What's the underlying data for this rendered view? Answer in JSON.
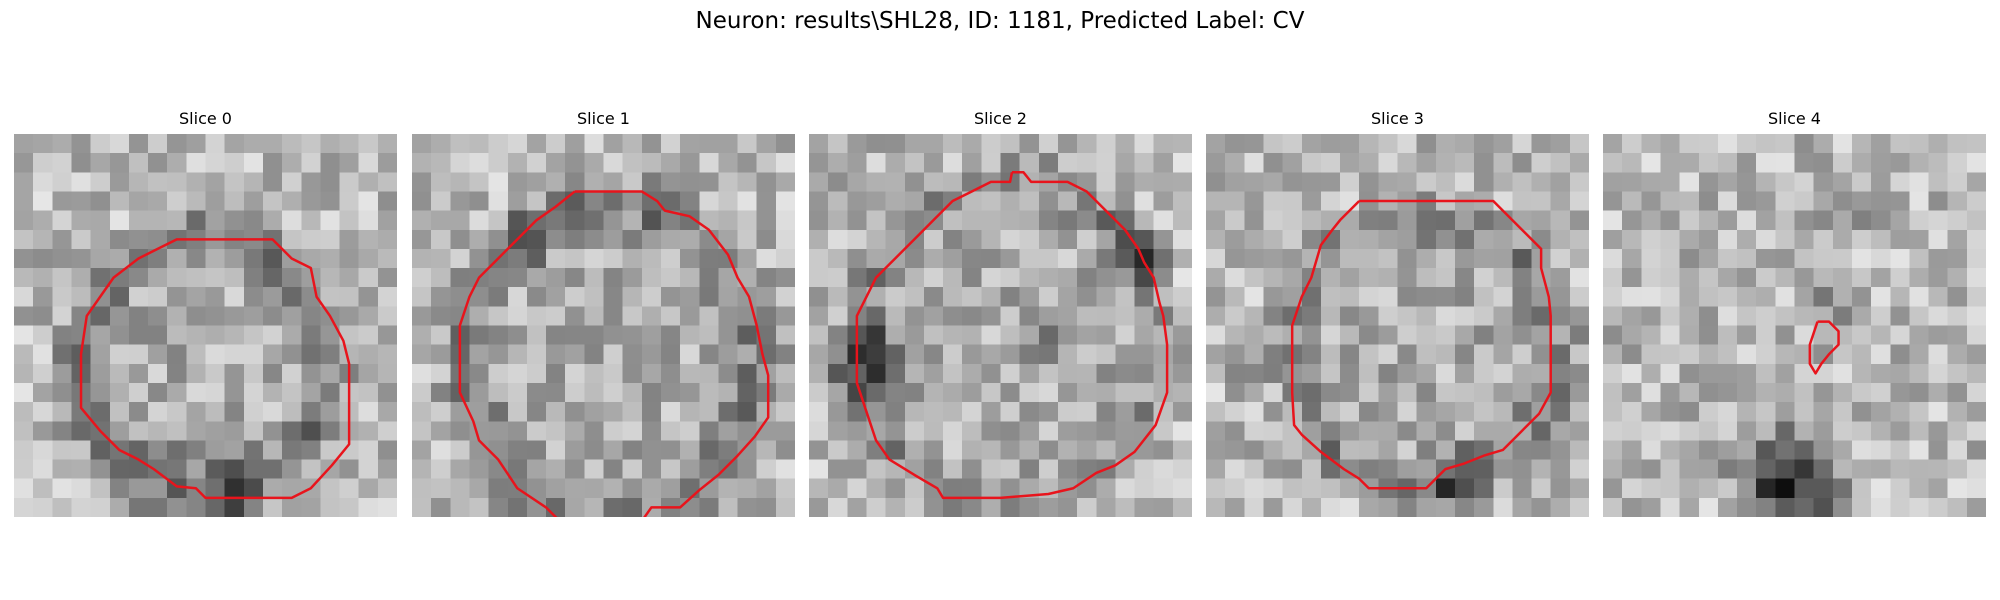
{
  "figure": {
    "title": "Neuron: results\\SHL28, ID: 1181, Predicted Label: CV"
  },
  "colors": {
    "contour": "#e8141c",
    "cmap": "grayscale"
  },
  "slices": [
    {
      "label": "Slice 0",
      "seed": 11,
      "contour": [
        [
          9.5,
          5.5
        ],
        [
          13.5,
          5.5
        ],
        [
          14.5,
          6.5
        ],
        [
          15.5,
          7
        ],
        [
          15.8,
          8.5
        ],
        [
          16.5,
          9.5
        ],
        [
          17.2,
          10.8
        ],
        [
          17.5,
          12
        ],
        [
          17.5,
          14.5
        ],
        [
          17.5,
          16.2
        ],
        [
          16.6,
          17.3
        ],
        [
          15.5,
          18.5
        ],
        [
          14.5,
          19
        ],
        [
          12.5,
          19
        ],
        [
          10,
          19
        ],
        [
          9.5,
          18.5
        ],
        [
          8.5,
          18.4
        ],
        [
          7.3,
          17.5
        ],
        [
          6.5,
          17
        ],
        [
          5.5,
          16.5
        ],
        [
          4.5,
          15.5
        ],
        [
          3.5,
          14.3
        ],
        [
          3.5,
          11.5
        ],
        [
          3.8,
          9.5
        ],
        [
          4.5,
          8.5
        ],
        [
          5.2,
          7.5
        ],
        [
          6.5,
          6.5
        ],
        [
          7.5,
          6
        ],
        [
          8.5,
          5.5
        ],
        [
          9.5,
          5.5
        ]
      ],
      "dark_ring": {
        "cx": 9.8,
        "cy": 12.2,
        "rx": 6.4,
        "ry": 6.8,
        "width": 1.8,
        "strength": 70
      },
      "blobs": [
        {
          "x": 11.5,
          "y": 18.2,
          "r": 1.4,
          "v": -90
        },
        {
          "x": 7.6,
          "y": 16.5,
          "r": 1.2,
          "v": -50
        }
      ]
    },
    {
      "label": "Slice 1",
      "seed": 23,
      "contour": [
        [
          8.5,
          3
        ],
        [
          12,
          3
        ],
        [
          12.8,
          3.5
        ],
        [
          13.2,
          4
        ],
        [
          14.5,
          4.3
        ],
        [
          15.5,
          5
        ],
        [
          16.5,
          6.3
        ],
        [
          17,
          7.5
        ],
        [
          17.6,
          8.5
        ],
        [
          18,
          10
        ],
        [
          18.3,
          11.5
        ],
        [
          18.6,
          12.6
        ],
        [
          18.6,
          14.8
        ],
        [
          17.9,
          15.8
        ],
        [
          17,
          16.8
        ],
        [
          16,
          17.8
        ],
        [
          15,
          18.6
        ],
        [
          14,
          19.5
        ],
        [
          12.5,
          19.5
        ],
        [
          11.8,
          20.5
        ],
        [
          8,
          20.5
        ],
        [
          7.5,
          20
        ],
        [
          7,
          19.5
        ],
        [
          5.5,
          18.5
        ],
        [
          4.5,
          17
        ],
        [
          3.5,
          16
        ],
        [
          3.2,
          15
        ],
        [
          2.5,
          13.5
        ],
        [
          2.5,
          10
        ],
        [
          3,
          8.5
        ],
        [
          3.5,
          7.5
        ],
        [
          4.5,
          6.5
        ],
        [
          5.5,
          5.5
        ],
        [
          6.5,
          4.5
        ],
        [
          7.5,
          3.8
        ],
        [
          8.5,
          3
        ]
      ],
      "dark_ring": {
        "cx": 10.4,
        "cy": 12.0,
        "rx": 7.6,
        "ry": 8.3,
        "width": 1.8,
        "strength": 65
      },
      "blobs": [
        {
          "x": 5.8,
          "y": 5.2,
          "r": 1.3,
          "v": -70
        },
        {
          "x": 13.8,
          "y": 3.6,
          "r": 1.2,
          "v": -60
        }
      ]
    },
    {
      "label": "Slice 2",
      "seed": 37,
      "contour": [
        [
          10.6,
          2
        ],
        [
          11.2,
          2
        ],
        [
          11.6,
          2.5
        ],
        [
          13.5,
          2.5
        ],
        [
          14.5,
          3
        ],
        [
          15.5,
          4
        ],
        [
          16.5,
          5
        ],
        [
          17.2,
          6
        ],
        [
          17.5,
          6.7
        ],
        [
          18,
          7.5
        ],
        [
          18.3,
          8.8
        ],
        [
          18.5,
          9.5
        ],
        [
          18.7,
          11
        ],
        [
          18.7,
          13.5
        ],
        [
          18.1,
          15.2
        ],
        [
          17,
          16.6
        ],
        [
          16,
          17.3
        ],
        [
          15,
          17.7
        ],
        [
          13.8,
          18.5
        ],
        [
          12.5,
          18.8
        ],
        [
          10,
          19
        ],
        [
          7,
          19
        ],
        [
          6.7,
          18.5
        ],
        [
          5.5,
          17.8
        ],
        [
          4.2,
          17
        ],
        [
          3.5,
          16
        ],
        [
          3,
          14.5
        ],
        [
          2.5,
          13
        ],
        [
          2.5,
          9.5
        ],
        [
          3,
          8.5
        ],
        [
          3.5,
          7.5
        ],
        [
          4.5,
          6.5
        ],
        [
          5.5,
          5.5
        ],
        [
          6.5,
          4.5
        ],
        [
          7.5,
          3.5
        ],
        [
          8.5,
          3
        ],
        [
          9.5,
          2.5
        ],
        [
          10.5,
          2.5
        ],
        [
          10.6,
          2
        ]
      ],
      "dark_ring": {
        "cx": 10.5,
        "cy": 11.0,
        "rx": 7.8,
        "ry": 8.6,
        "width": 1.6,
        "strength": 50
      },
      "blobs": [
        {
          "x": 2.8,
          "y": 11.8,
          "r": 1.8,
          "v": -110
        },
        {
          "x": 16.8,
          "y": 6.0,
          "r": 1.4,
          "v": -100
        },
        {
          "x": 11.5,
          "y": 11.0,
          "r": 1.3,
          "v": -55
        }
      ]
    },
    {
      "label": "Slice 3",
      "seed": 53,
      "contour": [
        [
          8,
          3.5
        ],
        [
          15,
          3.5
        ],
        [
          16.5,
          5
        ],
        [
          17.5,
          6
        ],
        [
          17.5,
          7
        ],
        [
          17.9,
          8.5
        ],
        [
          18,
          9.5
        ],
        [
          18,
          13.5
        ],
        [
          17.4,
          14.6
        ],
        [
          16.5,
          15.5
        ],
        [
          15.5,
          16.5
        ],
        [
          14.5,
          16.8
        ],
        [
          13.5,
          17.2
        ],
        [
          12.5,
          17.5
        ],
        [
          11.5,
          18.5
        ],
        [
          8.5,
          18.5
        ],
        [
          8,
          18
        ],
        [
          7.2,
          17.5
        ],
        [
          6,
          16.6
        ],
        [
          5,
          15.7
        ],
        [
          4.6,
          15.2
        ],
        [
          4.5,
          13.5
        ],
        [
          4.5,
          10
        ],
        [
          5,
          8.5
        ],
        [
          5.5,
          7.5
        ],
        [
          6,
          5.8
        ],
        [
          6.6,
          5
        ],
        [
          7,
          4.5
        ],
        [
          8,
          3.5
        ]
      ],
      "dark_ring": {
        "cx": 11.5,
        "cy": 11.5,
        "rx": 6.8,
        "ry": 7.2,
        "width": 1.8,
        "strength": 55
      },
      "blobs": [
        {
          "x": 13.2,
          "y": 17.8,
          "r": 1.5,
          "v": -90
        },
        {
          "x": 2.6,
          "y": 11.5,
          "r": 1.3,
          "v": -55
        }
      ]
    },
    {
      "label": "Slice 4",
      "seed": 71,
      "contour": [
        [
          11.2,
          9.8
        ],
        [
          11.8,
          9.8
        ],
        [
          12.3,
          10.3
        ],
        [
          12.3,
          11
        ],
        [
          11.8,
          11.5
        ],
        [
          11.4,
          12
        ],
        [
          11.1,
          12.5
        ],
        [
          10.8,
          12
        ],
        [
          10.8,
          11
        ],
        [
          11.2,
          9.8
        ]
      ],
      "dark_ring": null,
      "blobs": [
        {
          "x": 9.8,
          "y": 18.3,
          "r": 2.4,
          "v": -160
        },
        {
          "x": 12.0,
          "y": 9.3,
          "r": 1.1,
          "v": -60
        },
        {
          "x": 13.2,
          "y": 3.5,
          "r": 1.5,
          "v": -40
        }
      ]
    }
  ]
}
